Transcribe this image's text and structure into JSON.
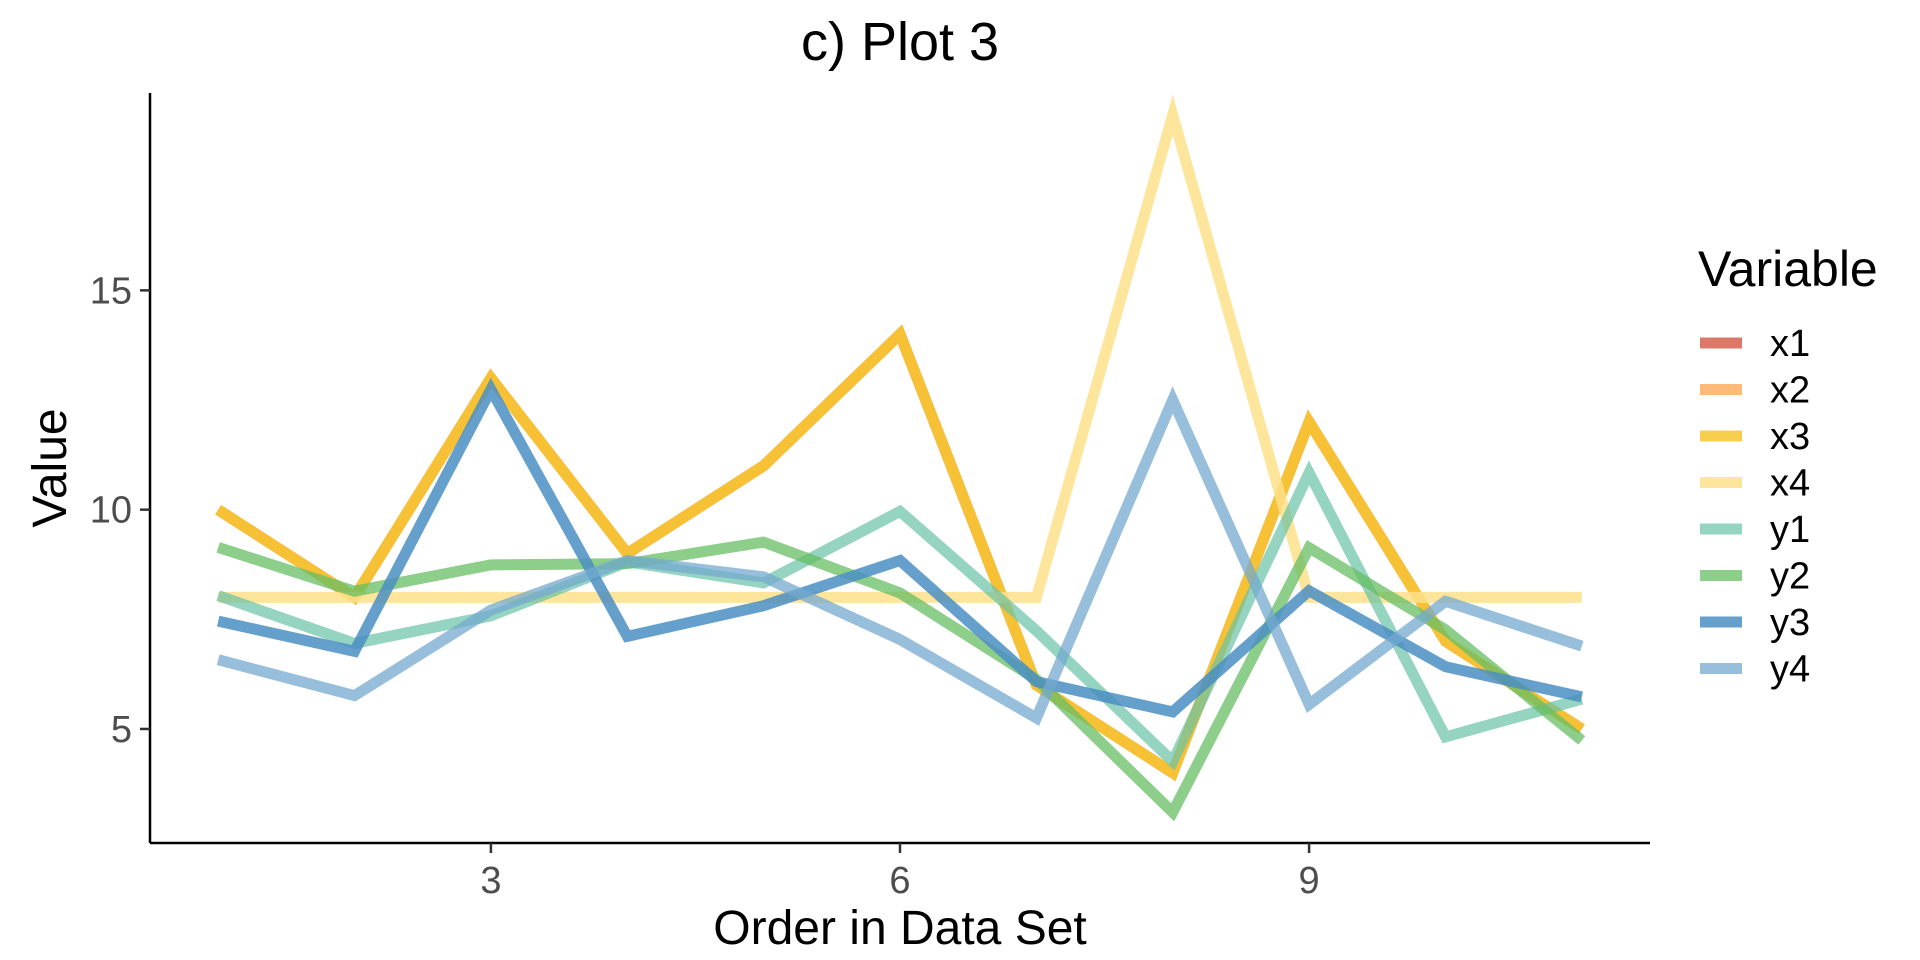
{
  "chart_data": {
    "type": "line",
    "title": "c) Plot 3",
    "xlabel": "Order in Data Set",
    "ylabel": "Value",
    "x": [
      1,
      2,
      3,
      4,
      5,
      6,
      7,
      8,
      9,
      10,
      11
    ],
    "xlim": [
      0.5,
      11.5
    ],
    "ylim": [
      2.4,
      19.5
    ],
    "x_ticks": [
      3,
      6,
      9
    ],
    "y_ticks": [
      5,
      10,
      15
    ],
    "legend_title": "Variable",
    "legend_position": "right",
    "grid": false,
    "series": [
      {
        "name": "x1",
        "color": "#d6604d",
        "opacity": 0.85,
        "values": [
          10,
          8,
          13,
          9,
          11,
          14,
          6,
          4,
          12,
          7,
          5
        ]
      },
      {
        "name": "x2",
        "color": "#fdae61",
        "opacity": 0.85,
        "values": [
          10,
          8,
          13,
          9,
          11,
          14,
          6,
          4,
          12,
          7,
          5
        ]
      },
      {
        "name": "x3",
        "color": "#f7c62f",
        "opacity": 0.85,
        "values": [
          10,
          8,
          13,
          9,
          11,
          14,
          6,
          4,
          12,
          7,
          5
        ]
      },
      {
        "name": "x4",
        "color": "#fee08b",
        "opacity": 0.85,
        "values": [
          8,
          8,
          8,
          8,
          8,
          8,
          8,
          19,
          8,
          8,
          8
        ]
      },
      {
        "name": "y1",
        "color": "#66c2a5",
        "opacity": 0.7,
        "values": [
          8.04,
          6.95,
          7.58,
          8.81,
          8.33,
          9.96,
          7.24,
          4.26,
          10.84,
          4.82,
          5.68
        ]
      },
      {
        "name": "y2",
        "color": "#66bd63",
        "opacity": 0.75,
        "values": [
          9.14,
          8.14,
          8.74,
          8.77,
          9.26,
          8.1,
          6.13,
          3.1,
          9.13,
          7.26,
          4.74
        ]
      },
      {
        "name": "y3",
        "color": "#4a8ec2",
        "opacity": 0.85,
        "values": [
          7.46,
          6.77,
          12.74,
          7.11,
          7.81,
          8.84,
          6.08,
          5.39,
          8.15,
          6.42,
          5.73
        ]
      },
      {
        "name": "y4",
        "color": "#74a9cf",
        "opacity": 0.75,
        "values": [
          6.58,
          5.76,
          7.71,
          8.84,
          8.47,
          7.04,
          5.25,
          12.5,
          5.56,
          7.91,
          6.89
        ]
      }
    ]
  }
}
